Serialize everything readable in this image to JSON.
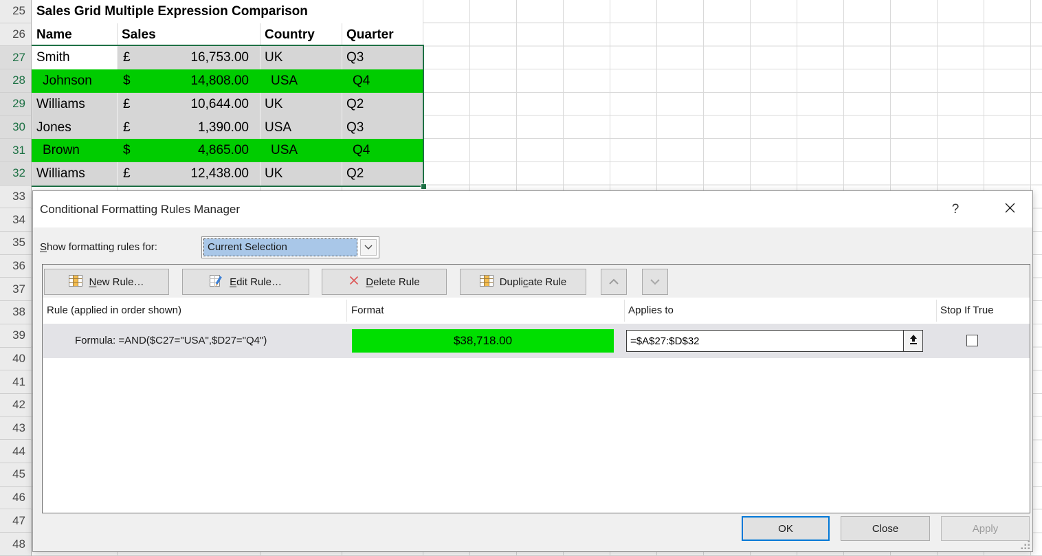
{
  "colors": {
    "green_fill": "#00cc00",
    "format_preview_fill": "#00df00",
    "selection_fill": "#d6d6d6",
    "selection_border": "#1e7145",
    "focus_accent": "#0078d7",
    "dropdown_highlight": "#a9c7e8"
  },
  "spreadsheet": {
    "row_numbers": [
      25,
      26,
      27,
      28,
      29,
      30,
      31,
      32,
      33,
      34,
      35,
      36,
      37,
      38,
      39,
      40,
      41,
      42,
      43,
      44,
      45,
      46,
      47,
      48
    ],
    "selected_row_numbers": [
      27,
      28,
      29,
      30,
      31,
      32
    ],
    "title_cell": "Sales Grid Multiple Expression Comparison",
    "column_headers": {
      "name": "Name",
      "sales": "Sales",
      "country": "Country",
      "quarter": "Quarter"
    },
    "rows": [
      {
        "row": 27,
        "name": "Smith",
        "currency": "£",
        "amount": "16,753.00",
        "country": "UK",
        "quarter": "Q3",
        "highlight": "selection",
        "active_cell": true
      },
      {
        "row": 28,
        "name": "Johnson",
        "currency": "$",
        "amount": "14,808.00",
        "country": "USA",
        "quarter": "Q4",
        "highlight": "green"
      },
      {
        "row": 29,
        "name": "Williams",
        "currency": "£",
        "amount": "10,644.00",
        "country": "UK",
        "quarter": "Q2",
        "highlight": "selection"
      },
      {
        "row": 30,
        "name": "Jones",
        "currency": "£",
        "amount": "1,390.00",
        "country": "USA",
        "quarter": "Q3",
        "highlight": "selection"
      },
      {
        "row": 31,
        "name": "Brown",
        "currency": "$",
        "amount": "4,865.00",
        "country": "USA",
        "quarter": "Q4",
        "highlight": "green"
      },
      {
        "row": 32,
        "name": "Williams",
        "currency": "£",
        "amount": "12,438.00",
        "country": "UK",
        "quarter": "Q2",
        "highlight": "selection"
      }
    ]
  },
  "dialog": {
    "title": "Conditional Formatting Rules Manager",
    "help_label": "?",
    "show_rules_label": {
      "label": "Show formatting rules for:",
      "accel": "S"
    },
    "show_rules_value": "Current Selection",
    "toolbar": {
      "new_rule": {
        "label": "New Rule…",
        "accel": "N"
      },
      "edit_rule": {
        "label": "Edit Rule…",
        "accel": "E"
      },
      "delete_rule": {
        "label": "Delete Rule",
        "accel": "D"
      },
      "duplicate_rule": {
        "label": "Duplicate Rule",
        "accel": "c"
      }
    },
    "list_headers": {
      "rule": "Rule (applied in order shown)",
      "format": "Format",
      "applies_to": "Applies to",
      "stop_if_true": "Stop If True"
    },
    "rule": {
      "description": "Formula: =AND($C27=\"USA\",$D27=\"Q4\")",
      "format_preview": "$38,718.00",
      "applies_to": "=$A$27:$D$32",
      "stop_if_true_checked": false
    },
    "footer": {
      "ok": "OK",
      "close": "Close",
      "apply": "Apply"
    }
  }
}
